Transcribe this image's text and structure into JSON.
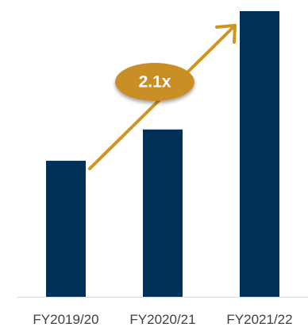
{
  "chart_data": {
    "type": "bar",
    "title": "",
    "xlabel": "",
    "ylabel": "",
    "categories": [
      "FY2019/20",
      "FY2020/21",
      "FY2021/22"
    ],
    "values": [
      1.0,
      1.23,
      2.1
    ],
    "ylim": [
      0,
      2.1
    ],
    "grid": false,
    "legend": "none",
    "annotation": {
      "label": "2.1x",
      "type": "growth-arrow",
      "from": "FY2019/20",
      "to": "FY2021/22"
    },
    "colors": {
      "bar": "#003057",
      "arrow": "#D3941D",
      "badge": "#C98F26",
      "badge_text": "#ffffff",
      "axis": "#D9D9D9",
      "tick_label": "#404040"
    }
  }
}
